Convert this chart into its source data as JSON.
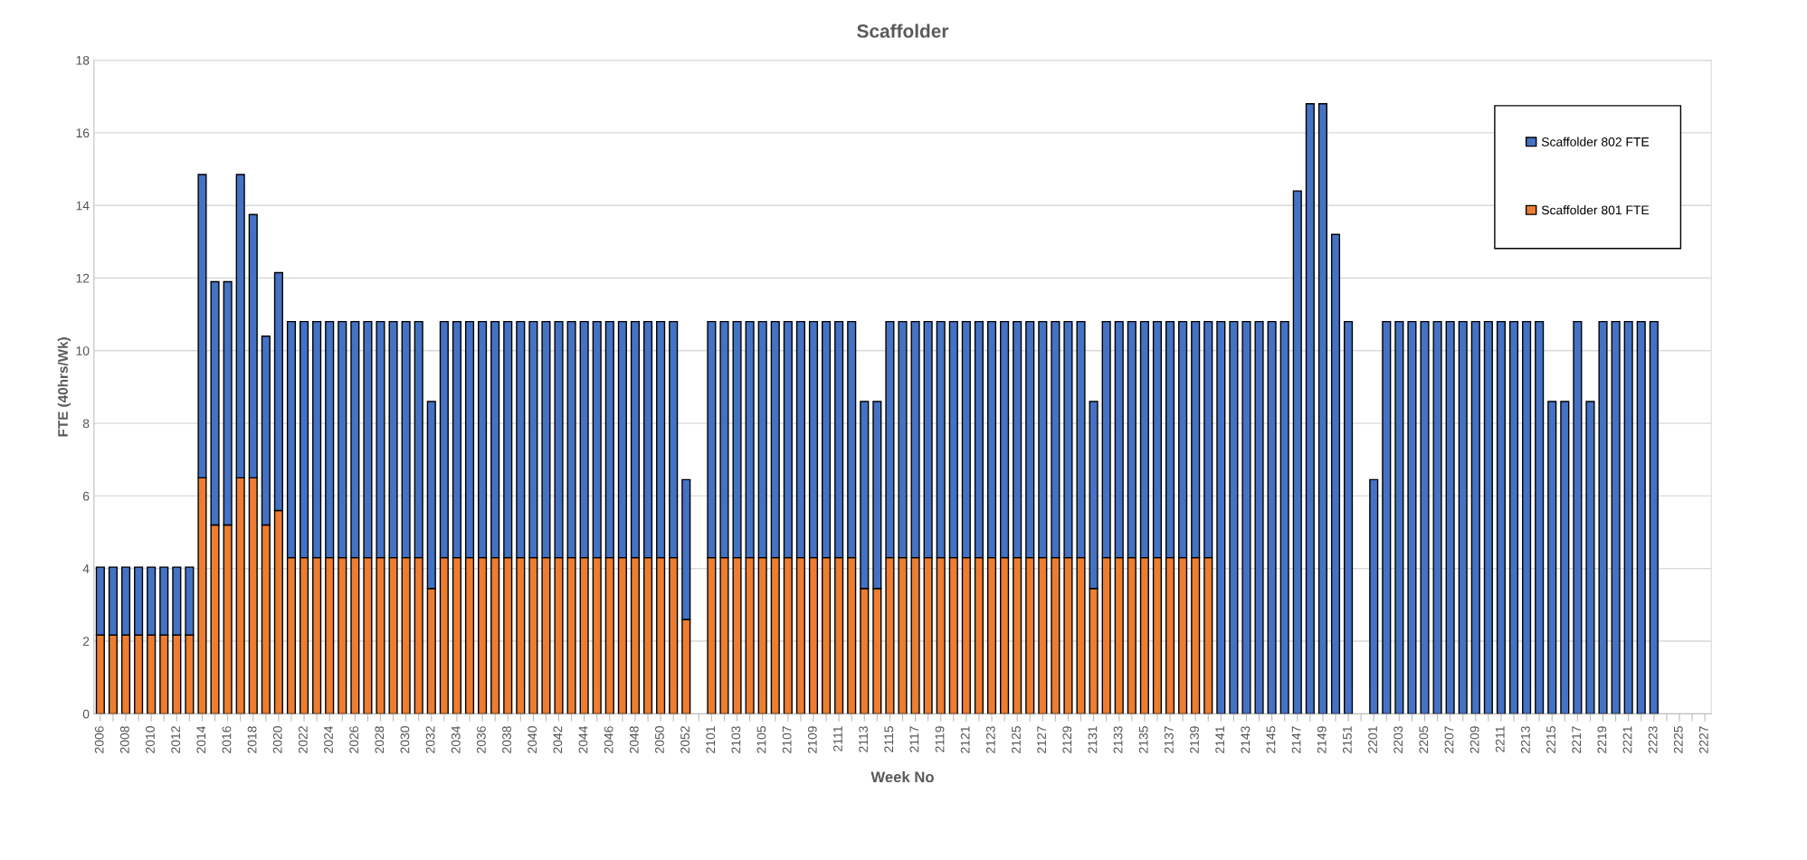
{
  "chart_data": {
    "type": "bar",
    "title": "Scaffolder",
    "xlabel": "Week No",
    "ylabel": "FTE (40hrs/Wk)",
    "stacked": true,
    "grid": "y",
    "legend": "top right",
    "ylim": [
      0,
      18
    ],
    "yticks": [
      0,
      2,
      4,
      6,
      8,
      10,
      12,
      14,
      16,
      18
    ],
    "categories": [
      "2006",
      null,
      "2008",
      null,
      "2010",
      null,
      "2012",
      null,
      "2014",
      null,
      "2016",
      null,
      "2018",
      null,
      "2020",
      null,
      "2022",
      null,
      "2024",
      null,
      "2026",
      null,
      "2028",
      null,
      "2030",
      null,
      "2032",
      null,
      "2034",
      null,
      "2036",
      null,
      "2038",
      null,
      "2040",
      null,
      "2042",
      null,
      "2044",
      null,
      "2046",
      null,
      "2048",
      null,
      "2050",
      null,
      "2052",
      null,
      "2101",
      null,
      "2103",
      null,
      "2105",
      null,
      "2107",
      null,
      "2109",
      null,
      "2111",
      null,
      "2113",
      null,
      "2115",
      null,
      "2117",
      null,
      "2119",
      null,
      "2121",
      null,
      "2123",
      null,
      "2125",
      null,
      "2127",
      null,
      "2129",
      null,
      "2131",
      null,
      "2133",
      null,
      "2135",
      null,
      "2137",
      null,
      "2139",
      null,
      "2141",
      null,
      "2143",
      null,
      "2145",
      null,
      "2147",
      null,
      "2149",
      null,
      "2151",
      null,
      "2201",
      null,
      "2203",
      null,
      "2205",
      null,
      "2207",
      null,
      "2209",
      null,
      "2211",
      null,
      "2213",
      null,
      "2215",
      null,
      "2217",
      null,
      "2219",
      null,
      "2221",
      null,
      "2223",
      null,
      "2225",
      null,
      "2227"
    ],
    "series": [
      {
        "name": "Scaffolder 801 FTE",
        "color": "#ed7d31",
        "values": [
          2.17,
          2.17,
          2.17,
          2.17,
          2.17,
          2.17,
          2.17,
          2.17,
          6.5,
          5.2,
          5.2,
          6.5,
          6.5,
          5.2,
          5.6,
          4.3,
          4.3,
          4.3,
          4.3,
          4.3,
          4.3,
          4.3,
          4.3,
          4.3,
          4.3,
          4.3,
          3.45,
          4.3,
          4.3,
          4.3,
          4.3,
          4.3,
          4.3,
          4.3,
          4.3,
          4.3,
          4.3,
          4.3,
          4.3,
          4.3,
          4.3,
          4.3,
          4.3,
          4.3,
          4.3,
          4.3,
          2.6,
          null,
          4.3,
          4.3,
          4.3,
          4.3,
          4.3,
          4.3,
          4.3,
          4.3,
          4.3,
          4.3,
          4.3,
          4.3,
          3.45,
          3.45,
          4.3,
          4.3,
          4.3,
          4.3,
          4.3,
          4.3,
          4.3,
          4.3,
          4.3,
          4.3,
          4.3,
          4.3,
          4.3,
          4.3,
          4.3,
          4.3,
          3.45,
          4.3,
          4.3,
          4.3,
          4.3,
          4.3,
          4.3,
          4.3,
          4.3,
          4.3,
          null,
          null,
          null,
          null,
          null,
          null,
          null,
          null,
          null,
          null,
          null,
          null,
          null,
          null,
          null,
          null,
          null,
          null,
          null,
          null,
          null,
          null,
          null,
          null,
          null,
          null,
          null,
          null,
          null,
          null,
          null,
          null,
          null,
          null,
          null,
          null,
          null,
          null,
          null
        ]
      },
      {
        "name": "Scaffolder 802 FTE",
        "color": "#4472c4",
        "values": [
          1.87,
          1.87,
          1.87,
          1.87,
          1.87,
          1.87,
          1.87,
          1.87,
          8.35,
          6.7,
          6.7,
          8.35,
          7.25,
          5.2,
          6.55,
          6.5,
          6.5,
          6.5,
          6.5,
          6.5,
          6.5,
          6.5,
          6.5,
          6.5,
          6.5,
          6.5,
          5.15,
          6.5,
          6.5,
          6.5,
          6.5,
          6.5,
          6.5,
          6.5,
          6.5,
          6.5,
          6.5,
          6.5,
          6.5,
          6.5,
          6.5,
          6.5,
          6.5,
          6.5,
          6.5,
          6.5,
          3.85,
          null,
          6.5,
          6.5,
          6.5,
          6.5,
          6.5,
          6.5,
          6.5,
          6.5,
          6.5,
          6.5,
          6.5,
          6.5,
          5.15,
          5.15,
          6.5,
          6.5,
          6.5,
          6.5,
          6.5,
          6.5,
          6.5,
          6.5,
          6.5,
          6.5,
          6.5,
          6.5,
          6.5,
          6.5,
          6.5,
          6.5,
          5.15,
          6.5,
          6.5,
          6.5,
          6.5,
          6.5,
          6.5,
          6.5,
          6.5,
          6.5,
          10.8,
          10.8,
          10.8,
          10.8,
          10.8,
          10.8,
          14.4,
          16.8,
          16.8,
          13.2,
          10.8,
          null,
          6.45,
          10.8,
          10.8,
          10.8,
          10.8,
          10.8,
          10.8,
          10.8,
          10.8,
          10.8,
          10.8,
          10.8,
          10.8,
          10.8,
          8.6,
          8.6,
          10.8,
          8.6,
          10.8,
          10.8,
          10.8,
          10.8,
          10.8,
          null,
          null,
          null,
          null
        ]
      }
    ]
  }
}
